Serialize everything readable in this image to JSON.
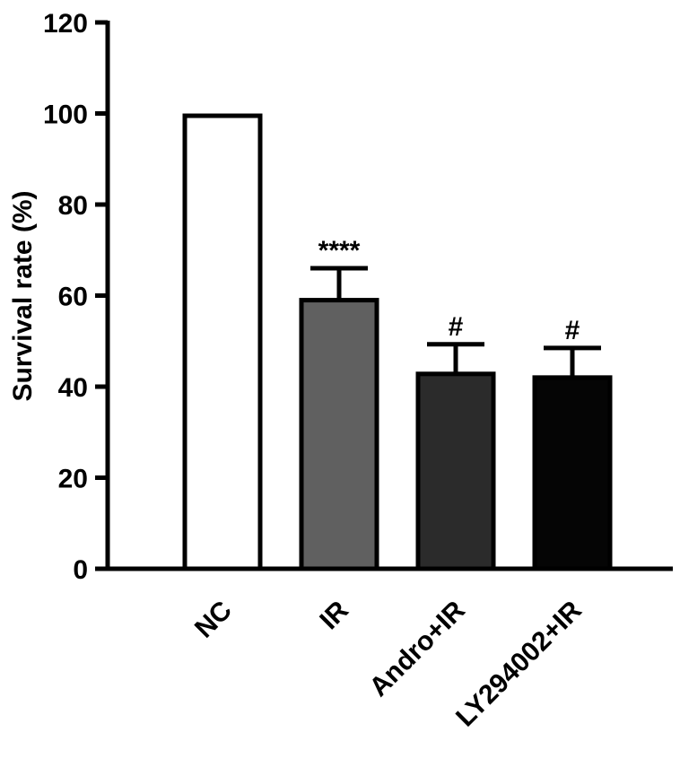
{
  "chart_data": {
    "type": "bar",
    "title": "",
    "xlabel": "",
    "ylabel": "Survival rate (%)",
    "ylim": [
      0,
      120
    ],
    "yticks": [
      0,
      20,
      40,
      60,
      80,
      100,
      120
    ],
    "grid": false,
    "categories": [
      "NC",
      "IR",
      "Andro+IR",
      "LY294002+IR"
    ],
    "values": [
      99.5,
      59,
      42.8,
      42
    ],
    "errors": [
      0,
      7,
      6.5,
      6.5
    ],
    "annotations": [
      "",
      "****",
      "#",
      "#"
    ],
    "colors": [
      "#ffffff",
      "#606060",
      "#2b2b2b",
      "#050505"
    ]
  }
}
